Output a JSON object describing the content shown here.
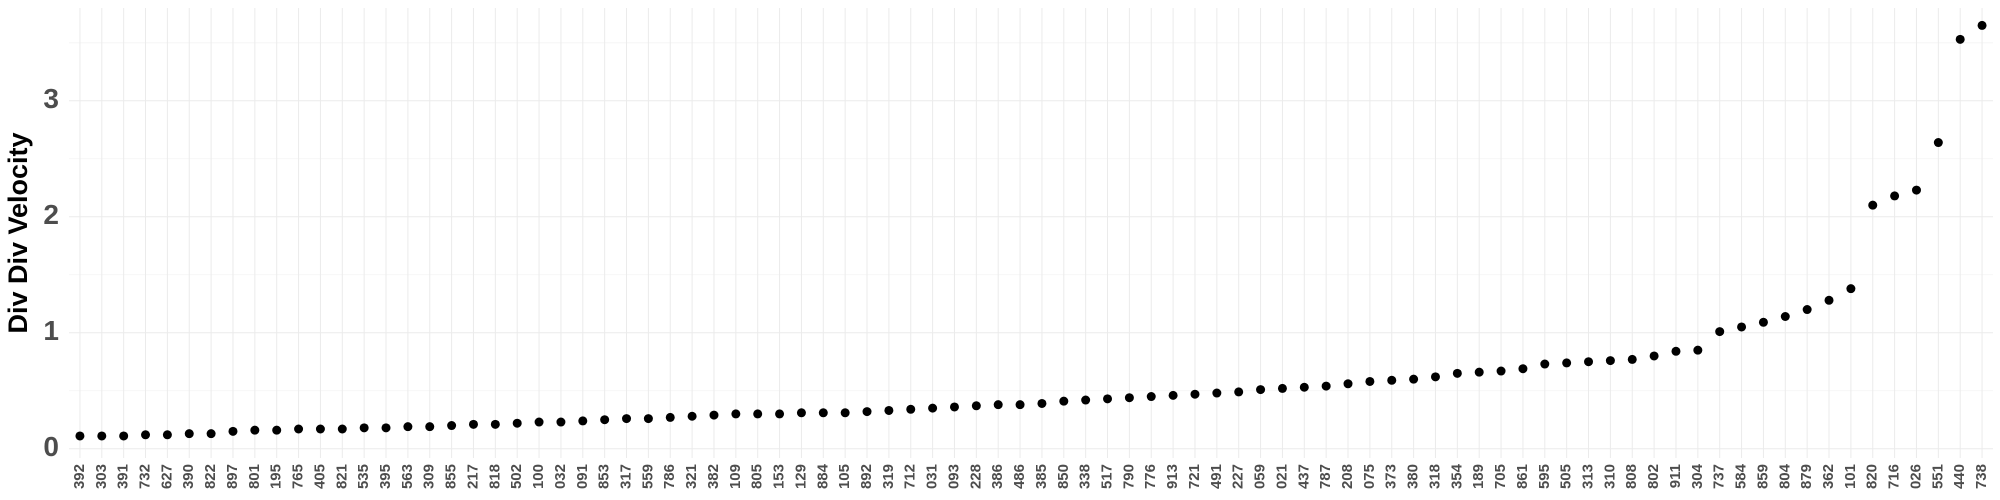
{
  "chart_data": {
    "type": "dot",
    "y_label": "Div Div Velocity",
    "categories": [
      "392",
      "303",
      "391",
      "732",
      "627",
      "390",
      "822",
      "897",
      "801",
      "195",
      "765",
      "405",
      "821",
      "535",
      "395",
      "563",
      "309",
      "855",
      "217",
      "818",
      "502",
      "100",
      "032",
      "091",
      "853",
      "317",
      "559",
      "786",
      "321",
      "382",
      "109",
      "805",
      "153",
      "129",
      "884",
      "105",
      "892",
      "319",
      "712",
      "031",
      "093",
      "228",
      "386",
      "486",
      "385",
      "850",
      "338",
      "517",
      "790",
      "776",
      "913",
      "721",
      "491",
      "227",
      "059",
      "021",
      "437",
      "787",
      "208",
      "075",
      "373",
      "380",
      "318",
      "354",
      "189",
      "705",
      "861",
      "595",
      "505",
      "313",
      "310",
      "808",
      "802",
      "911",
      "304",
      "737",
      "584",
      "859",
      "804",
      "879",
      "362",
      "101",
      "820",
      "716",
      "026",
      "551",
      "440",
      "738"
    ],
    "values": [
      0.11,
      0.11,
      0.11,
      0.12,
      0.12,
      0.13,
      0.13,
      0.15,
      0.16,
      0.16,
      0.17,
      0.17,
      0.17,
      0.18,
      0.18,
      0.19,
      0.19,
      0.2,
      0.21,
      0.21,
      0.22,
      0.23,
      0.23,
      0.24,
      0.25,
      0.26,
      0.26,
      0.27,
      0.28,
      0.29,
      0.3,
      0.3,
      0.3,
      0.31,
      0.31,
      0.31,
      0.32,
      0.33,
      0.34,
      0.35,
      0.36,
      0.37,
      0.38,
      0.38,
      0.39,
      0.41,
      0.42,
      0.43,
      0.44,
      0.45,
      0.46,
      0.47,
      0.48,
      0.49,
      0.51,
      0.52,
      0.53,
      0.54,
      0.56,
      0.58,
      0.59,
      0.6,
      0.62,
      0.65,
      0.66,
      0.67,
      0.69,
      0.73,
      0.74,
      0.75,
      0.76,
      0.77,
      0.8,
      0.84,
      0.85,
      1.01,
      1.05,
      1.09,
      1.14,
      1.2,
      1.28,
      1.38,
      2.1,
      2.18,
      2.23,
      2.64,
      3.53,
      3.65
    ],
    "color": "#000000",
    "ylim": [
      -0.08,
      3.8
    ],
    "yticks": [
      0,
      1,
      2,
      3
    ],
    "grid": true
  }
}
